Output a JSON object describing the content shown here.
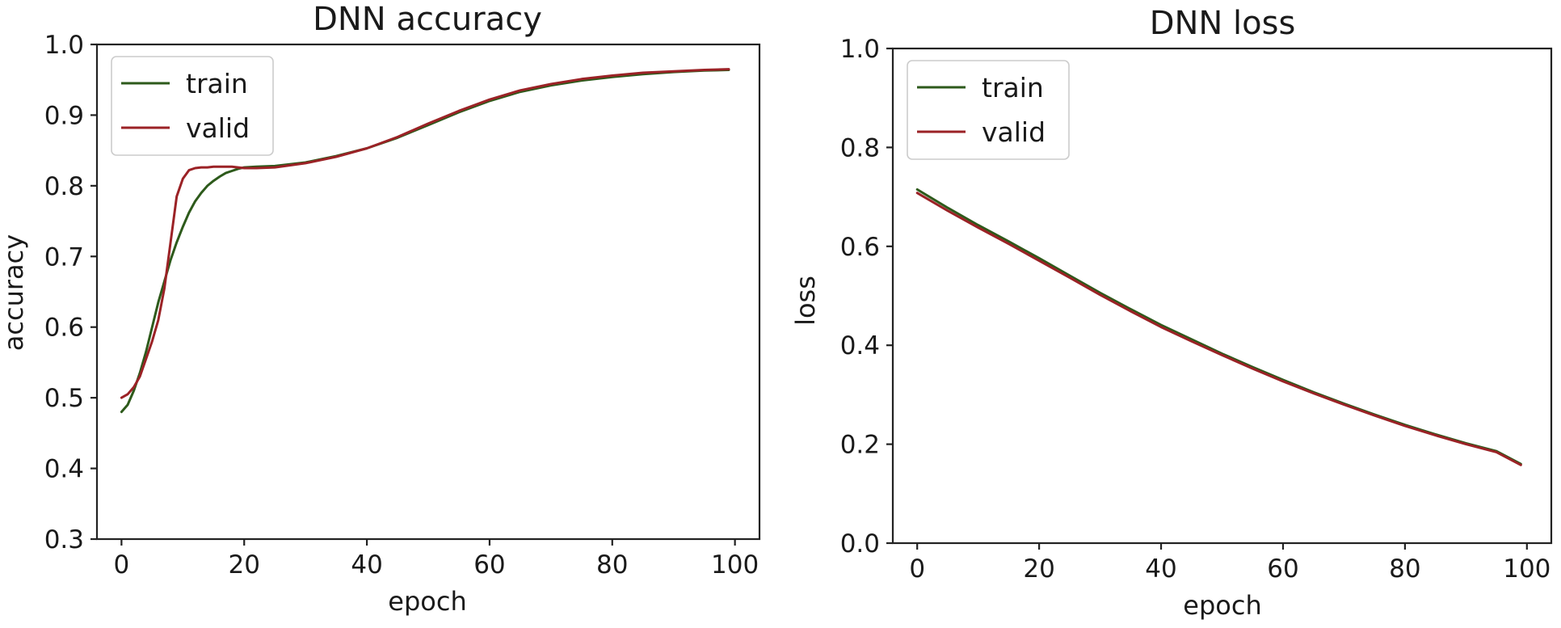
{
  "chart_data": [
    {
      "type": "line",
      "title": "DNN accuracy",
      "xlabel": "epoch",
      "ylabel": "accuracy",
      "xlim": [
        -4,
        104
      ],
      "ylim": [
        0.3,
        1.0
      ],
      "xticks": [
        0,
        20,
        40,
        60,
        80,
        100
      ],
      "yticks": [
        0.3,
        0.4,
        0.5,
        0.6,
        0.7,
        0.8,
        0.9,
        1.0
      ],
      "ytick_labels": [
        "0.3",
        "0.4",
        "0.5",
        "0.6",
        "0.7",
        "0.8",
        "0.9",
        "1.0"
      ],
      "grid": false,
      "legend": "top-left",
      "series": [
        {
          "name": "train",
          "color": "#2d5a1b",
          "x": [
            0,
            1,
            2,
            3,
            4,
            5,
            6,
            7,
            8,
            9,
            10,
            11,
            12,
            13,
            14,
            15,
            16,
            17,
            18,
            19,
            20,
            22,
            25,
            30,
            35,
            40,
            45,
            50,
            55,
            60,
            65,
            70,
            75,
            80,
            85,
            90,
            95,
            99
          ],
          "y": [
            0.48,
            0.49,
            0.51,
            0.535,
            0.565,
            0.6,
            0.635,
            0.665,
            0.695,
            0.72,
            0.742,
            0.762,
            0.778,
            0.79,
            0.8,
            0.807,
            0.813,
            0.818,
            0.821,
            0.824,
            0.826,
            0.827,
            0.828,
            0.833,
            0.842,
            0.853,
            0.868,
            0.886,
            0.904,
            0.92,
            0.933,
            0.942,
            0.949,
            0.954,
            0.958,
            0.961,
            0.963,
            0.964
          ]
        },
        {
          "name": "valid",
          "color": "#9b2226",
          "x": [
            0,
            1,
            2,
            3,
            4,
            5,
            6,
            7,
            8,
            9,
            10,
            11,
            12,
            13,
            14,
            15,
            16,
            17,
            18,
            19,
            20,
            22,
            25,
            30,
            35,
            40,
            45,
            50,
            55,
            60,
            65,
            70,
            75,
            80,
            85,
            90,
            95,
            99
          ],
          "y": [
            0.5,
            0.505,
            0.515,
            0.53,
            0.555,
            0.58,
            0.61,
            0.655,
            0.72,
            0.785,
            0.81,
            0.822,
            0.825,
            0.826,
            0.826,
            0.827,
            0.827,
            0.827,
            0.827,
            0.826,
            0.825,
            0.825,
            0.826,
            0.832,
            0.841,
            0.853,
            0.869,
            0.888,
            0.906,
            0.922,
            0.935,
            0.944,
            0.951,
            0.956,
            0.96,
            0.962,
            0.964,
            0.965
          ]
        }
      ]
    },
    {
      "type": "line",
      "title": "DNN loss",
      "xlabel": "epoch",
      "ylabel": "loss",
      "xlim": [
        -4,
        104
      ],
      "ylim": [
        0.0,
        1.0
      ],
      "xticks": [
        0,
        20,
        40,
        60,
        80,
        100
      ],
      "yticks": [
        0.0,
        0.2,
        0.4,
        0.6,
        0.8,
        1.0
      ],
      "ytick_labels": [
        "0.0",
        "0.2",
        "0.4",
        "0.6",
        "0.8",
        "1.0"
      ],
      "grid": false,
      "legend": "top-left",
      "series": [
        {
          "name": "train",
          "color": "#2d5a1b",
          "x": [
            0,
            5,
            10,
            15,
            20,
            25,
            30,
            35,
            40,
            45,
            50,
            55,
            60,
            65,
            70,
            75,
            80,
            85,
            90,
            95,
            99
          ],
          "y": [
            0.715,
            0.678,
            0.643,
            0.61,
            0.576,
            0.541,
            0.506,
            0.473,
            0.441,
            0.412,
            0.383,
            0.356,
            0.33,
            0.305,
            0.282,
            0.26,
            0.239,
            0.22,
            0.202,
            0.186,
            0.16
          ]
        },
        {
          "name": "valid",
          "color": "#9b2226",
          "x": [
            0,
            5,
            10,
            15,
            20,
            25,
            30,
            35,
            40,
            45,
            50,
            55,
            60,
            65,
            70,
            75,
            80,
            85,
            90,
            95,
            99
          ],
          "y": [
            0.708,
            0.672,
            0.638,
            0.605,
            0.571,
            0.537,
            0.502,
            0.469,
            0.437,
            0.408,
            0.38,
            0.353,
            0.327,
            0.303,
            0.28,
            0.258,
            0.237,
            0.218,
            0.2,
            0.184,
            0.158
          ]
        }
      ]
    }
  ]
}
